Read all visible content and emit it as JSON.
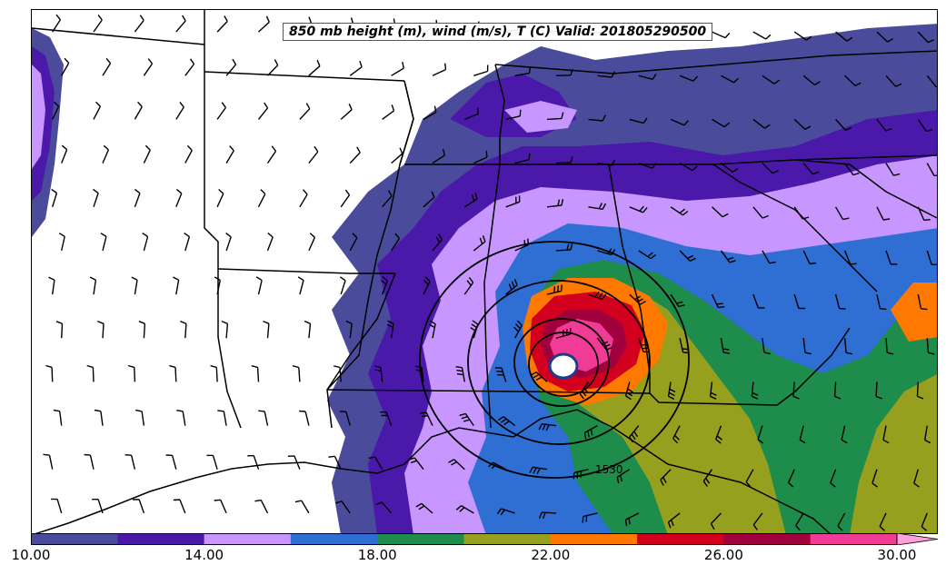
{
  "title": "850 mb height (m), wind (m/s), T (C) Valid: 201805290500",
  "colorbar": {
    "min": 10.0,
    "max": 31.0,
    "step": 2.0,
    "tick_labels": [
      "10.00",
      "14.00",
      "18.00",
      "22.00",
      "26.00",
      "30.00"
    ],
    "colors": [
      "#4b4b9b",
      "#4b19aa",
      "#c896ff",
      "#2f6ed2",
      "#1e8c4b",
      "#96a01e",
      "#ff7800",
      "#d2001e",
      "#a0003c",
      "#f03c96",
      "#ffa0dc"
    ]
  },
  "contour_label": "1530",
  "map_region": "southeastern-united-states",
  "storm_center_label": "cyclone-eye"
}
